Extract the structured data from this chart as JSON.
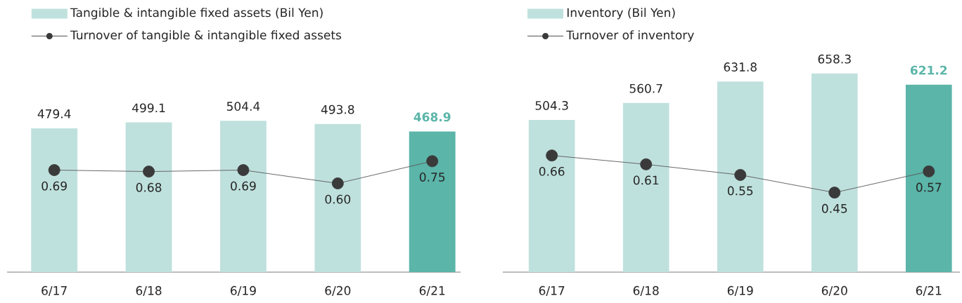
{
  "chart_data": [
    {
      "type": "bar",
      "categories": [
        "6/17",
        "6/18",
        "6/19",
        "6/20",
        "6/21"
      ],
      "tick_labels": "x",
      "legend": "top left",
      "marker": "circle",
      "series": [
        {
          "name": "Tangible & intangible fixed assets (Bil Yen)",
          "colors": [
            "#bfe1dd",
            "#bfe1dd",
            "#bfe1dd",
            "#bfe1dd",
            "#5bb5a9"
          ],
          "values": [
            479.4,
            499.1,
            504.4,
            493.8,
            468.9
          ],
          "value_labels": [
            "479.4",
            "499.1",
            "504.4",
            "493.8",
            "**468.9**"
          ]
        },
        {
          "type": "line",
          "axis": "y2",
          "name": "Turnover of tangible & intangible fixed assets",
          "color": "#3a3a3a",
          "values": [
            0.69,
            0.68,
            0.69,
            0.6,
            0.75
          ],
          "value_labels": [
            "0.69",
            "0.68",
            "0.69",
            "0.60",
            "0.75"
          ]
        }
      ]
    },
    {
      "type": "bar",
      "categories": [
        "6/17",
        "6/18",
        "6/19",
        "6/20",
        "6/21"
      ],
      "tick_labels": "x",
      "legend": "top left",
      "marker": "circle",
      "series": [
        {
          "name": "Inventory (Bil Yen)",
          "colors": [
            "#bfe1dd",
            "#bfe1dd",
            "#bfe1dd",
            "#bfe1dd",
            "#5bb5a9"
          ],
          "values": [
            504.3,
            560.7,
            631.8,
            658.3,
            621.2
          ],
          "value_labels": [
            "504.3",
            "560.7",
            "631.8",
            "658.3",
            "**621.2**"
          ]
        },
        {
          "type": "line",
          "axis": "y2",
          "name": "Turnover of inventory",
          "color": "#3a3a3a",
          "values": [
            0.66,
            0.61,
            0.55,
            0.45,
            0.57
          ],
          "value_labels": [
            "0.66",
            "0.61",
            "0.55",
            "0.45",
            "0.57"
          ]
        }
      ]
    }
  ]
}
